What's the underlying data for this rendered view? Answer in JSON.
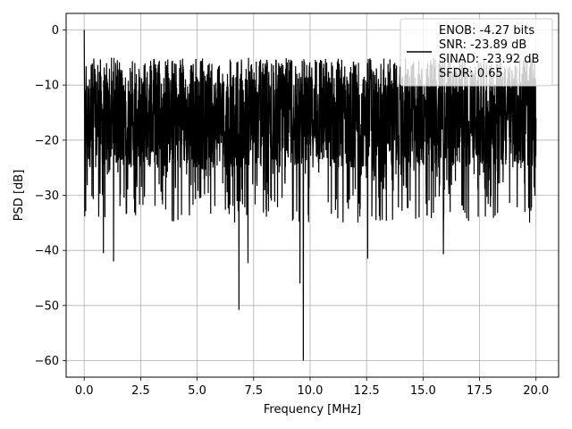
{
  "chart_data": {
    "type": "line",
    "xlabel": "Frequency [MHz]",
    "ylabel": "PSD [dB]",
    "xlim": [
      -0.8,
      21.0
    ],
    "ylim": [
      -63,
      3
    ],
    "x_ticks": [
      0.0,
      2.5,
      5.0,
      7.5,
      10.0,
      12.5,
      15.0,
      17.5,
      20.0
    ],
    "x_tick_labels": [
      "0.0",
      "2.5",
      "5.0",
      "7.5",
      "10.0",
      "12.5",
      "15.0",
      "17.5",
      "20.0"
    ],
    "y_ticks": [
      0,
      -10,
      -20,
      -30,
      -40,
      -50,
      -60
    ],
    "y_tick_labels": [
      "0",
      "−10",
      "−20",
      "−30",
      "−40",
      "−50",
      "−60"
    ],
    "grid": true,
    "legend_position": "top-right",
    "legend_lines": [
      "ENOB: -4.27 bits",
      "SNR: -23.89 dB",
      "SINAD: -23.92 dB",
      "SFDR: 0.65"
    ],
    "series": [
      {
        "color": "#000000",
        "x_start": 0.0,
        "x_end": 20.0,
        "noise_floor_band": [
          -25,
          -8
        ],
        "peaks": [
          {
            "x": 0.0,
            "y": 0.0
          },
          {
            "x": 6.85,
            "y": -50.8
          },
          {
            "x": 7.25,
            "y": -42.3
          },
          {
            "x": 9.55,
            "y": -46.0
          },
          {
            "x": 9.7,
            "y": -60.0
          },
          {
            "x": 12.55,
            "y": -41.5
          },
          {
            "x": 1.3,
            "y": -42.0
          },
          {
            "x": 0.85,
            "y": -40.5
          },
          {
            "x": 15.9,
            "y": -40.7
          }
        ]
      }
    ]
  }
}
